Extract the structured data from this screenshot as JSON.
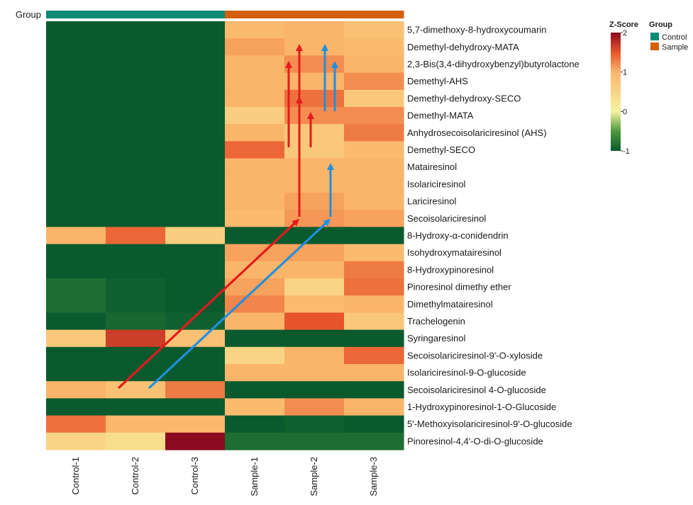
{
  "chart_data": {
    "type": "heatmap",
    "group_label": "Group",
    "columns": [
      "Control-1",
      "Control-2",
      "Control-3",
      "Sample-1",
      "Sample-2",
      "Sample-3"
    ],
    "column_groups": [
      "Control",
      "Control",
      "Control",
      "Sample",
      "Sample",
      "Sample"
    ],
    "rows": [
      "5,7-dimethoxy-8-hydroxycoumarin",
      "Demethyl-dehydroxy-MATA",
      "2,3-Bis(3,4-dihydroxybenzyl)butyrolactone",
      "Demethyl-AHS",
      "Demethyl-dehydroxy-SECO",
      "Demethyl-MATA",
      "Anhydrosecoisolariciresinol (AHS)",
      "Demethyl-SECO",
      "Matairesinol",
      "Isolariciresinol",
      "Lariciresinol",
      "Secoisolariciresinol",
      "8-Hydroxy-α-conidendrin",
      "Isohydroxymatairesinol",
      "8-Hydroxypinoresinol",
      "Pinoresinol dimethy ether",
      "Dimethylmatairesinol",
      "Trachelogenin",
      "Syringaresinol",
      "Secoisolariciresinol-9'-O-xyloside",
      "Isolariciresinol-9-O-glucoside",
      "Secoisolariciresinol 4-O-glucoside",
      "1-Hydroxypinoresinol-1-O-Glucoside",
      "5'-Methoxyisolariciresinol-9'-O-glucoside",
      "Pinoresinol-4,4'-O-di-O-glucoside"
    ],
    "values": [
      [
        -1.0,
        -1.0,
        -1.0,
        0.9,
        1.0,
        0.8
      ],
      [
        -1.0,
        -1.0,
        -1.0,
        1.1,
        1.0,
        0.9
      ],
      [
        -1.0,
        -1.0,
        -1.0,
        1.0,
        1.2,
        1.0
      ],
      [
        -1.0,
        -1.0,
        -1.0,
        1.0,
        1.0,
        1.2
      ],
      [
        -1.0,
        -1.0,
        -1.0,
        1.0,
        1.35,
        0.7
      ],
      [
        -1.0,
        -1.0,
        -1.0,
        0.6,
        1.2,
        1.2
      ],
      [
        -1.0,
        -1.0,
        -1.0,
        1.0,
        0.7,
        1.3
      ],
      [
        -1.0,
        -1.0,
        -1.0,
        1.4,
        0.7,
        0.9
      ],
      [
        -1.0,
        -1.0,
        -1.0,
        1.0,
        1.0,
        1.0
      ],
      [
        -1.0,
        -1.0,
        -1.0,
        1.0,
        1.0,
        1.0
      ],
      [
        -1.0,
        -1.0,
        -1.0,
        1.0,
        1.1,
        1.0
      ],
      [
        -1.0,
        -1.0,
        -1.0,
        0.9,
        1.15,
        1.1
      ],
      [
        1.0,
        1.4,
        0.6,
        -1.0,
        -1.0,
        -1.0
      ],
      [
        -1.0,
        -1.0,
        -1.0,
        1.1,
        1.1,
        0.9
      ],
      [
        -1.0,
        -1.0,
        -1.0,
        1.0,
        1.0,
        1.3
      ],
      [
        -0.85,
        -0.95,
        -1.05,
        1.1,
        0.5,
        1.35
      ],
      [
        -0.85,
        -0.95,
        -1.05,
        1.25,
        0.9,
        1.0
      ],
      [
        -1.05,
        -0.9,
        -0.95,
        1.0,
        1.5,
        0.7
      ],
      [
        0.7,
        1.65,
        0.8,
        -1.0,
        -1.0,
        -1.0
      ],
      [
        -1.0,
        -1.0,
        -1.0,
        0.5,
        1.0,
        1.4
      ],
      [
        -1.0,
        -1.0,
        -1.0,
        1.0,
        1.0,
        1.0
      ],
      [
        1.0,
        0.8,
        1.3,
        -1.0,
        -1.0,
        -1.0
      ],
      [
        -1.0,
        -1.0,
        -1.0,
        0.9,
        1.2,
        1.0
      ],
      [
        1.35,
        0.95,
        0.95,
        -1.05,
        -0.95,
        -1.1
      ],
      [
        0.5,
        0.35,
        2.0,
        -0.85,
        -0.85,
        -0.85
      ]
    ],
    "zscore_title": "Z-Score",
    "color_scale": {
      "range": [
        -1,
        2
      ],
      "ticks": [
        "2",
        "1",
        "0",
        "-1"
      ],
      "tick_values": [
        2,
        1,
        0,
        -1
      ],
      "stops": [
        {
          "value": -1,
          "color": "#0a5a2e"
        },
        {
          "value": -0.5,
          "color": "#4e9a3e"
        },
        {
          "value": 0,
          "color": "#f6f3a0"
        },
        {
          "value": 1,
          "color": "#fbb56a"
        },
        {
          "value": 1.5,
          "color": "#e7542a"
        },
        {
          "value": 2,
          "color": "#8b0a1f"
        }
      ]
    },
    "group_legend": {
      "title": "Group",
      "items": [
        {
          "name": "Control",
          "color": "#0f8b76"
        },
        {
          "name": "Sample",
          "color": "#d45f0c"
        }
      ]
    },
    "arrows": {
      "red_color": "#e41a1c",
      "blue_color": "#1f8fe0"
    }
  }
}
